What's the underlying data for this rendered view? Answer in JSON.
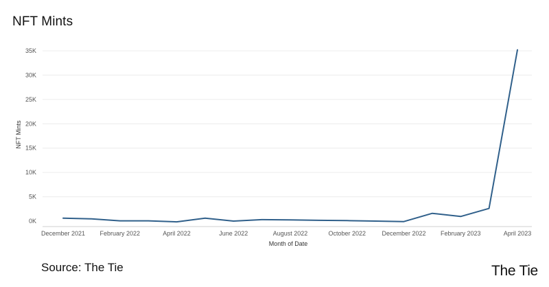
{
  "title": "NFT Mints",
  "source": "Source: The Tie",
  "brand": "The Tie",
  "colors": {
    "line": "#2f5f8a",
    "grid": "#ececec",
    "axis": "#cfcfcf",
    "text": "#555555"
  },
  "chart_data": {
    "type": "line",
    "title": "NFT Mints",
    "xlabel": "Month of Date",
    "ylabel": "NFT Mints",
    "ylim": [
      0,
      35000
    ],
    "grid": true,
    "y_ticks": [
      "0K",
      "5K",
      "10K",
      "15K",
      "20K",
      "25K",
      "30K",
      "35K"
    ],
    "x_tick_labels": [
      {
        "month": "2021-12",
        "label": "December 2021"
      },
      {
        "month": "2022-02",
        "label": "February 2022"
      },
      {
        "month": "2022-04",
        "label": "April 2022"
      },
      {
        "month": "2022-06",
        "label": "June 2022"
      },
      {
        "month": "2022-08",
        "label": "August 2022"
      },
      {
        "month": "2022-10",
        "label": "October 2022"
      },
      {
        "month": "2022-12",
        "label": "December 2022"
      },
      {
        "month": "2023-02",
        "label": "February 2023"
      },
      {
        "month": "2023-04",
        "label": "April 2023"
      }
    ],
    "series": [
      {
        "x": [
          "2021-12",
          "2022-01",
          "2022-02",
          "2022-03",
          "2022-04",
          "2022-05",
          "2022-06",
          "2022-07",
          "2022-08",
          "2022-09",
          "2022-10",
          "2022-11",
          "2022-12",
          "2023-01",
          "2023-02",
          "2023-03",
          "2023-04"
        ],
        "values": [
          600,
          450,
          50,
          50,
          -150,
          600,
          0,
          300,
          250,
          150,
          100,
          0,
          -100,
          1600,
          950,
          2600,
          35200
        ]
      }
    ]
  }
}
